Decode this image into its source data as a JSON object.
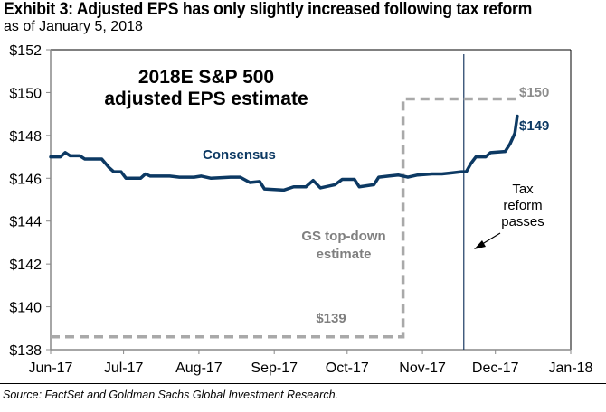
{
  "header": {
    "title": "Exhibit 3: Adjusted EPS has only slightly increased following tax reform",
    "subtitle": "as of January 5, 2018"
  },
  "footer": {
    "source": "Source: FactSet and Goldman Sachs Global Investment Research."
  },
  "colors": {
    "consensus": "#0c3963",
    "gs_estimate": "#a9a9a9",
    "event_line": "#1b3a63",
    "axis": "#888888"
  },
  "chart_data": {
    "type": "line",
    "title": "2018E S&P 500 adjusted EPS estimate",
    "title_lines": [
      "2018E S&P 500",
      "adjusted EPS estimate"
    ],
    "xlabel": "",
    "ylabel": "",
    "ylim": [
      138,
      152
    ],
    "yticks": [
      138,
      140,
      142,
      144,
      146,
      148,
      150,
      152
    ],
    "ytick_labels": [
      "$138",
      "$140",
      "$142",
      "$144",
      "$146",
      "$148",
      "$150",
      "$152"
    ],
    "xlim": [
      "2017-06-01",
      "2018-01-01"
    ],
    "xticks": [
      "2017-06-01",
      "2017-07-01",
      "2017-08-01",
      "2017-09-01",
      "2017-10-01",
      "2017-11-01",
      "2017-12-01",
      "2018-01-01"
    ],
    "xtick_labels": [
      "Jun-17",
      "Jul-17",
      "Aug-17",
      "Sep-17",
      "Oct-17",
      "Nov-17",
      "Dec-17",
      "Jan-18"
    ],
    "grid": false,
    "series": [
      {
        "name": "Consensus",
        "style": "solid",
        "end_label": "$149",
        "points": [
          [
            "2017-06-01",
            147.0
          ],
          [
            "2017-06-05",
            147.0
          ],
          [
            "2017-06-07",
            147.2
          ],
          [
            "2017-06-09",
            147.05
          ],
          [
            "2017-06-13",
            147.05
          ],
          [
            "2017-06-15",
            146.9
          ],
          [
            "2017-06-22",
            146.9
          ],
          [
            "2017-06-25",
            146.5
          ],
          [
            "2017-06-27",
            146.3
          ],
          [
            "2017-06-30",
            146.3
          ],
          [
            "2017-07-02",
            146.0
          ],
          [
            "2017-07-08",
            146.0
          ],
          [
            "2017-07-10",
            146.2
          ],
          [
            "2017-07-12",
            146.1
          ],
          [
            "2017-07-20",
            146.1
          ],
          [
            "2017-07-24",
            146.05
          ],
          [
            "2017-07-30",
            146.05
          ],
          [
            "2017-08-02",
            146.1
          ],
          [
            "2017-08-06",
            146.0
          ],
          [
            "2017-08-14",
            146.05
          ],
          [
            "2017-08-18",
            146.05
          ],
          [
            "2017-08-22",
            145.8
          ],
          [
            "2017-08-26",
            145.85
          ],
          [
            "2017-08-28",
            145.5
          ],
          [
            "2017-09-05",
            145.45
          ],
          [
            "2017-09-09",
            145.6
          ],
          [
            "2017-09-14",
            145.6
          ],
          [
            "2017-09-17",
            145.9
          ],
          [
            "2017-09-20",
            145.55
          ],
          [
            "2017-09-26",
            145.7
          ],
          [
            "2017-09-29",
            145.95
          ],
          [
            "2017-10-04",
            145.95
          ],
          [
            "2017-10-06",
            145.6
          ],
          [
            "2017-10-12",
            145.7
          ],
          [
            "2017-10-14",
            146.05
          ],
          [
            "2017-10-18",
            146.1
          ],
          [
            "2017-10-22",
            146.15
          ],
          [
            "2017-10-26",
            146.05
          ],
          [
            "2017-10-30",
            146.15
          ],
          [
            "2017-11-05",
            146.2
          ],
          [
            "2017-11-09",
            146.2
          ],
          [
            "2017-11-13",
            146.25
          ],
          [
            "2017-11-17",
            146.3
          ],
          [
            "2017-11-19",
            146.3
          ],
          [
            "2017-11-21",
            146.7
          ],
          [
            "2017-11-23",
            147.0
          ],
          [
            "2017-11-27",
            147.0
          ],
          [
            "2017-11-29",
            147.2
          ],
          [
            "2017-12-05",
            147.25
          ],
          [
            "2017-12-07",
            147.6
          ],
          [
            "2017-12-09",
            148.1
          ],
          [
            "2017-12-10",
            148.9
          ]
        ]
      },
      {
        "name": "GS top-down estimate",
        "style": "dashed",
        "start_label": "$139",
        "end_label": "$150",
        "label_lines": [
          "GS top-down",
          "estimate"
        ],
        "points": [
          [
            "2017-06-01",
            138.6
          ],
          [
            "2017-10-24",
            138.6
          ],
          [
            "2017-10-24",
            149.7
          ],
          [
            "2017-12-10",
            149.7
          ]
        ]
      }
    ],
    "annotations": [
      {
        "type": "vline",
        "x": "2017-11-18",
        "name": "Tax reform passes"
      },
      {
        "type": "text",
        "lines": [
          "Tax",
          "reform",
          "passes"
        ],
        "arrow": true
      },
      {
        "type": "series_label",
        "text": "Consensus"
      }
    ]
  }
}
